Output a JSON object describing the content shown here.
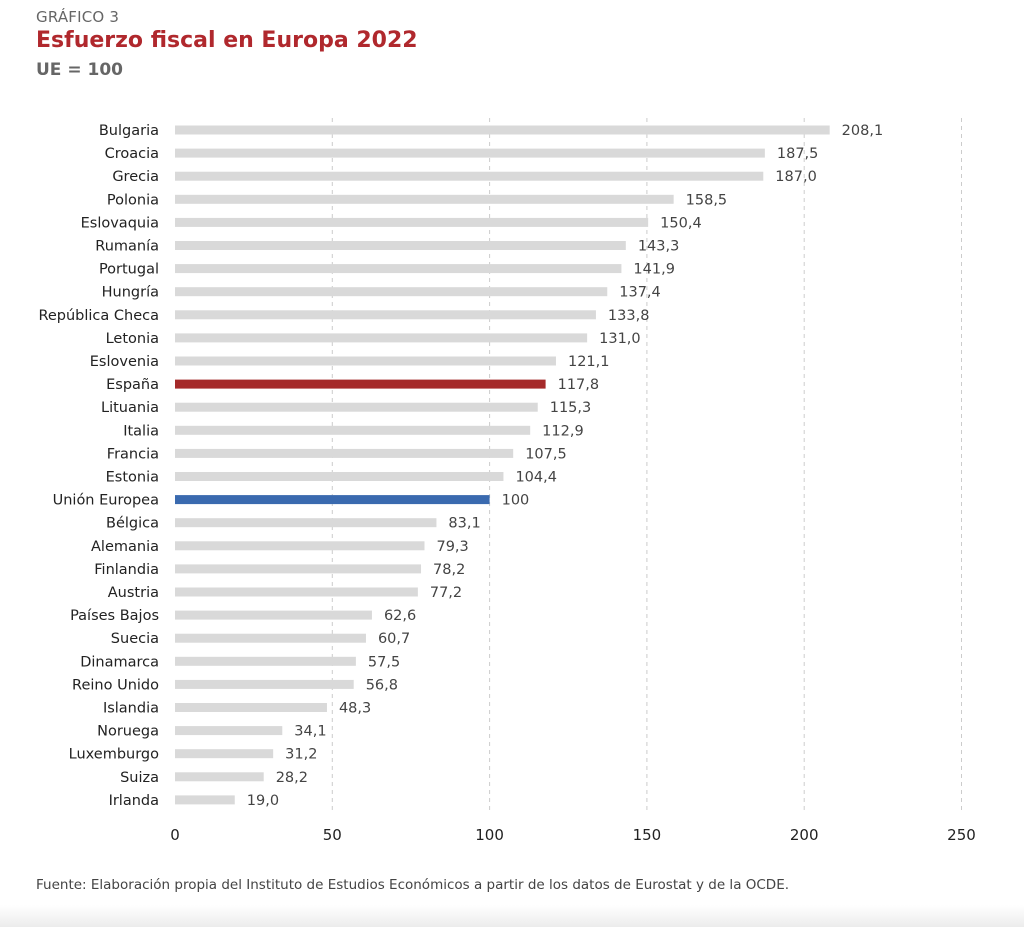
{
  "header": {
    "kicker": "GRÁFICO 3",
    "title": "Esfuerzo fiscal en Europa 2022",
    "subtitle": "UE = 100"
  },
  "footer": {
    "source": "Fuente: Elaboración propia del Instituto de Estudios Económicos a partir de los datos de Eurostat y de la OCDE."
  },
  "colors": {
    "default_bar": "#d9d9d9",
    "highlight_spain": "#a52a2a",
    "highlight_eu": "#3a6aaf",
    "title": "#b0282d",
    "grid": "#cccccc"
  },
  "chart_data": {
    "type": "bar",
    "orientation": "horizontal",
    "title": "Esfuerzo fiscal en Europa 2022",
    "subtitle": "UE = 100",
    "xlabel": "",
    "ylabel": "",
    "xlim": [
      0,
      250
    ],
    "xticks": [
      0,
      50,
      100,
      150,
      200,
      250
    ],
    "grid": "vertical dashed",
    "categories": [
      "Bulgaria",
      "Croacia",
      "Grecia",
      "Polonia",
      "Eslovaquia",
      "Rumanía",
      "Portugal",
      "Hungría",
      "República Checa",
      "Letonia",
      "Eslovenia",
      "España",
      "Lituania",
      "Italia",
      "Francia",
      "Estonia",
      "Unión Europea",
      "Bélgica",
      "Alemania",
      "Finlandia",
      "Austria",
      "Países Bajos",
      "Suecia",
      "Dinamarca",
      "Reino Unido",
      "Islandia",
      "Noruega",
      "Luxemburgo",
      "Suiza",
      "Irlanda"
    ],
    "values": [
      208.1,
      187.5,
      187.0,
      158.5,
      150.4,
      143.3,
      141.9,
      137.4,
      133.8,
      131.0,
      121.1,
      117.8,
      115.3,
      112.9,
      107.5,
      104.4,
      100,
      83.1,
      79.3,
      78.2,
      77.2,
      62.6,
      60.7,
      57.5,
      56.8,
      48.3,
      34.1,
      31.2,
      28.2,
      19.0
    ],
    "value_labels": [
      "208,1",
      "187,5",
      "187,0",
      "158,5",
      "150,4",
      "143,3",
      "141,9",
      "137,4",
      "133,8",
      "131,0",
      "121,1",
      "117,8",
      "115,3",
      "112,9",
      "107,5",
      "104,4",
      "100",
      "83,1",
      "79,3",
      "78,2",
      "77,2",
      "62,6",
      "60,7",
      "57,5",
      "56,8",
      "48,3",
      "34,1",
      "31,2",
      "28,2",
      "19,0"
    ],
    "highlights": {
      "España": "#a52a2a",
      "Unión Europea": "#3a6aaf"
    }
  }
}
